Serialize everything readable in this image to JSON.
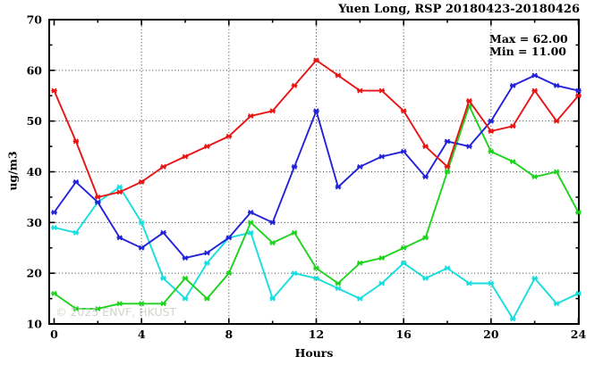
{
  "title": "Yuen Long, RSP 20180423-20180426",
  "annotations": {
    "max_label": "Max = 62.00",
    "min_label": "Min = 11.00"
  },
  "watermark": "© 2025 ENVF, HKUST",
  "axes": {
    "x_label": "Hours",
    "y_label": "ug/m3"
  },
  "chart_data": {
    "type": "line",
    "title": "Yuen Long, RSP 20180423-20180426",
    "xlabel": "Hours",
    "ylabel": "ug/m3",
    "xlim": [
      0,
      24
    ],
    "ylim": [
      10,
      70
    ],
    "x_major_ticks": [
      0,
      4,
      8,
      12,
      16,
      20,
      24
    ],
    "x_minor_ticks": [
      2,
      6,
      10,
      14,
      18,
      22
    ],
    "y_major_ticks": [
      10,
      20,
      30,
      40,
      50,
      60,
      70
    ],
    "y_minor_ticks": [
      15,
      25,
      35,
      45,
      55,
      65
    ],
    "grid_x_lines": [
      4,
      8,
      12,
      16,
      20
    ],
    "grid_y_lines": [
      20,
      30,
      40,
      50,
      60
    ],
    "grid": true,
    "legend_position": "none",
    "marker": "asterisk",
    "x": [
      0,
      1,
      2,
      3,
      4,
      5,
      6,
      7,
      8,
      9,
      10,
      11,
      12,
      13,
      14,
      15,
      16,
      17,
      18,
      19,
      20,
      21,
      22,
      23,
      24
    ],
    "series": [
      {
        "name": "cyan-series",
        "color": "#17dede",
        "values": [
          29,
          28,
          34,
          37,
          30,
          19,
          15,
          22,
          27,
          28,
          15,
          20,
          19,
          17,
          15,
          18,
          22,
          19,
          21,
          18,
          18,
          11,
          19,
          14,
          16
        ]
      },
      {
        "name": "green-series",
        "color": "#1ed31e",
        "values": [
          16,
          13,
          13,
          14,
          14,
          14,
          19,
          15,
          20,
          30,
          26,
          28,
          21,
          18,
          22,
          23,
          25,
          27,
          40,
          53,
          44,
          42,
          39,
          40,
          32
        ]
      },
      {
        "name": "blue-series",
        "color": "#2222d8",
        "values": [
          32,
          38,
          34,
          27,
          25,
          28,
          23,
          24,
          27,
          32,
          30,
          41,
          52,
          37,
          41,
          43,
          44,
          39,
          46,
          45,
          50,
          57,
          59,
          57,
          56
        ]
      },
      {
        "name": "red-series",
        "color": "#e81414",
        "values": [
          56,
          46,
          35,
          36,
          38,
          41,
          43,
          45,
          47,
          51,
          52,
          57,
          62,
          59,
          56,
          56,
          52,
          45,
          41,
          54,
          48,
          49,
          56,
          50,
          55
        ]
      }
    ],
    "stats": {
      "max": 62.0,
      "min": 11.0
    }
  }
}
